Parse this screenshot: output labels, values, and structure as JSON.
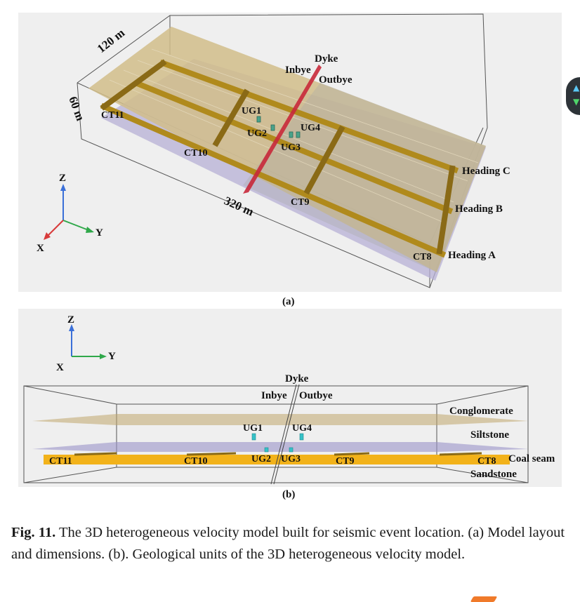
{
  "figure_a": {
    "dims": {
      "width": "120 m",
      "height": "60 m",
      "length": "320 m"
    },
    "dyke": "Dyke",
    "inbye": "Inbye",
    "outbye": "Outbye",
    "sensors": [
      "UG1",
      "UG2",
      "UG3",
      "UG4"
    ],
    "cut_throughs": [
      "CT11",
      "CT10",
      "CT9",
      "CT8"
    ],
    "headings": [
      "Heading C",
      "Heading B",
      "Heading A"
    ],
    "axes": {
      "z": "Z",
      "y": "Y",
      "x": "X"
    },
    "label": "(a)"
  },
  "figure_b": {
    "dyke": "Dyke",
    "inbye": "Inbye",
    "outbye": "Outbye",
    "sensors": [
      "UG1",
      "UG4",
      "UG2",
      "UG3"
    ],
    "cut_throughs": [
      "CT11",
      "CT10",
      "CT9",
      "CT8"
    ],
    "units": [
      "Conglomerate",
      "Siltstone",
      "Coal seam",
      "Sandstone"
    ],
    "axes": {
      "z": "Z",
      "y": "Y",
      "x": "X"
    },
    "label": "(b)"
  },
  "caption": {
    "fig_label": "Fig. 11.",
    "text": "The 3D heterogeneous velocity model built for seismic event location. (a) Model layout and dimensions. (b). Geological units of the 3D heterogeneous velocity model."
  },
  "colors": {
    "panel_bg": "#efefef",
    "layer_tan": "#c8b07a",
    "layer_purple": "#b7b0d6",
    "roadway": "#b8901f",
    "dyke": "#c8283a",
    "coal": "#f2b21a",
    "sensor": "#36c1c7"
  }
}
